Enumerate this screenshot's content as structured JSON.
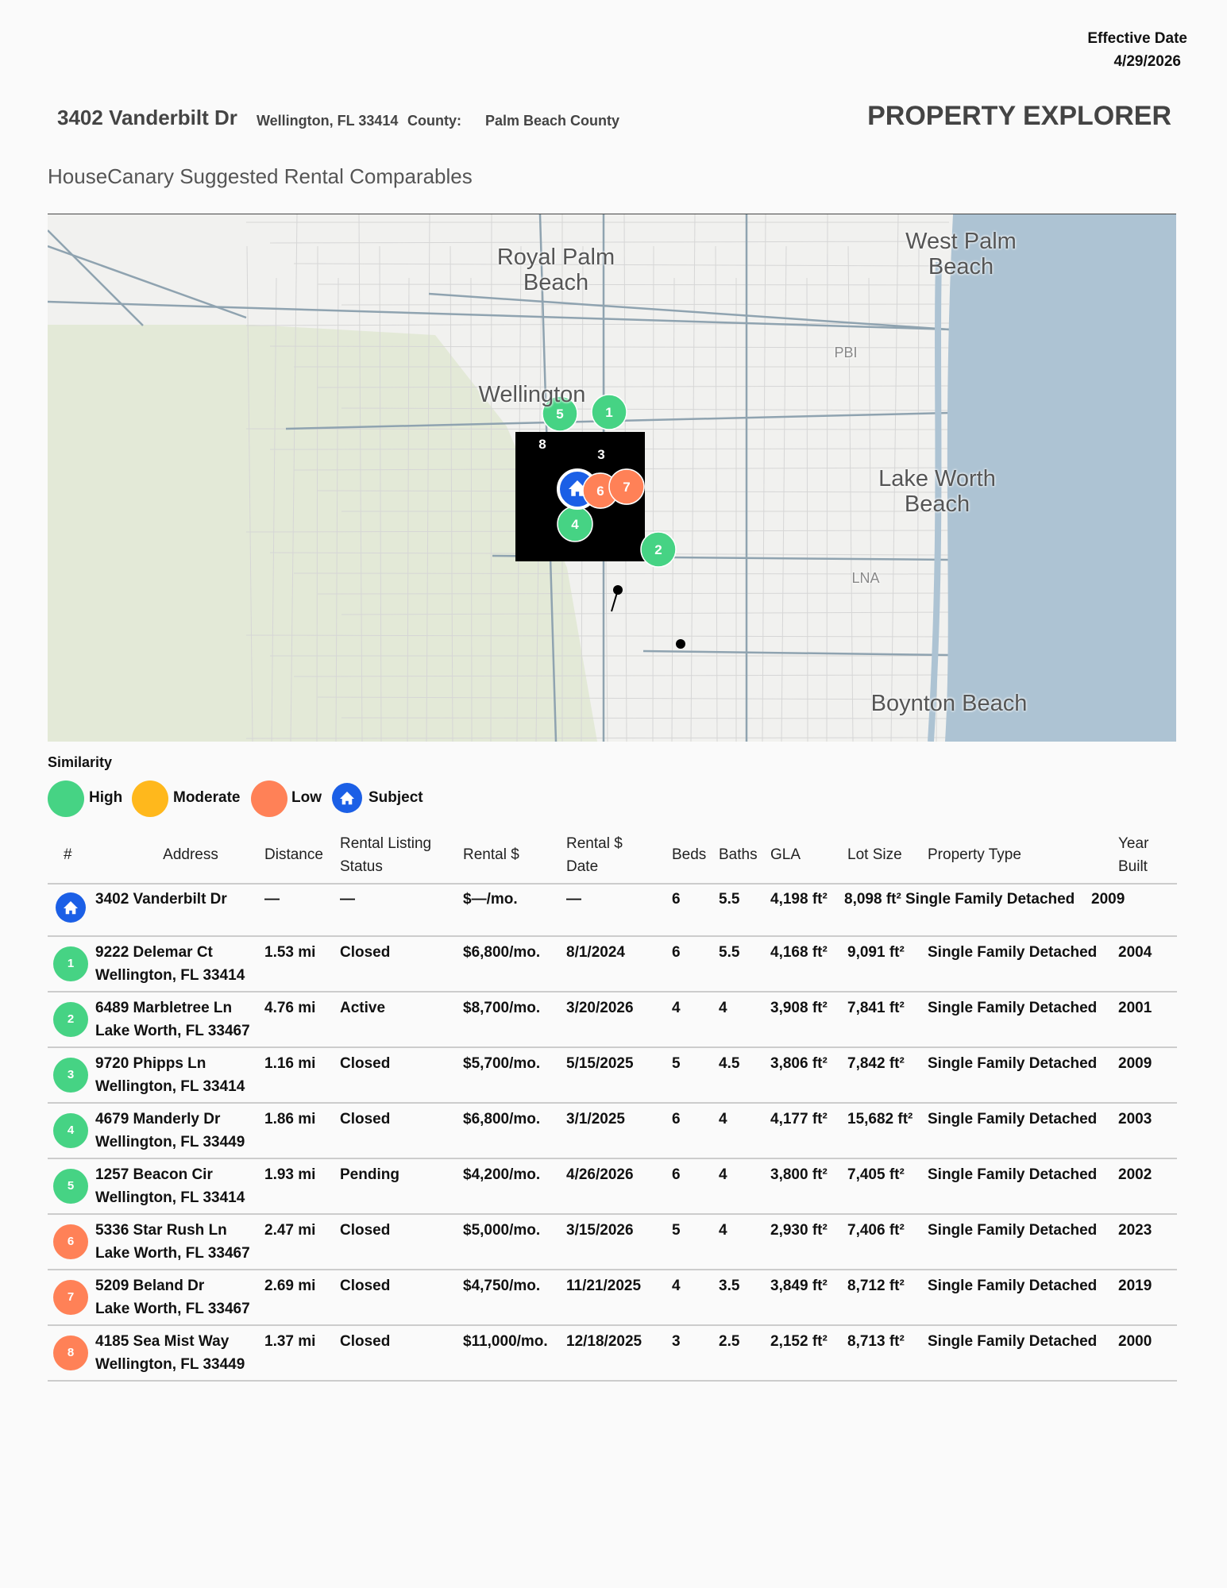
{
  "header": {
    "effective_date_label": "Effective Date",
    "effective_date": "4/29/2026",
    "address": "3402 Vanderbilt Dr",
    "city_state_zip": "Wellington, FL 33414",
    "county_label": "County:",
    "county": "Palm Beach County",
    "title": "PROPERTY EXPLORER"
  },
  "section_title": "HouseCanary Suggested Rental Comparables",
  "map": {
    "places": [
      "West Palm Beach",
      "Royal Palm Beach",
      "Wellington",
      "Lake Worth Beach",
      "Boynton Beach",
      "PBI",
      "LNA"
    ],
    "markers": [
      {
        "label": "5",
        "color": "#46d384"
      },
      {
        "label": "1",
        "color": "#46d384"
      },
      {
        "label": "8",
        "color": "#ff8157"
      },
      {
        "label": "3",
        "color": "#46d384"
      },
      {
        "label": "6",
        "color": "#ff8157"
      },
      {
        "label": "7",
        "color": "#ff8157"
      },
      {
        "label": "4",
        "color": "#46d384"
      },
      {
        "label": "2",
        "color": "#46d384"
      }
    ]
  },
  "legend": {
    "title": "Similarity",
    "items": [
      {
        "label": "High",
        "color": "#46d384"
      },
      {
        "label": "Moderate",
        "color": "#ffb81c"
      },
      {
        "label": "Low",
        "color": "#ff8157"
      },
      {
        "label": "Subject",
        "color": "#1b5fe6"
      }
    ]
  },
  "table": {
    "columns": [
      "#",
      "Address",
      "Distance",
      "Rental Listing Status",
      "Rental $",
      "Rental $ Date",
      "Beds",
      "Baths",
      "GLA",
      "Lot Size",
      "Property Type",
      "Year Built"
    ],
    "subject": [
      "3402 Vanderbilt Dr",
      "—",
      "—",
      "$—/mo.",
      "—",
      "6",
      "5.5",
      "4,198 ft²",
      "8,098 ft²",
      "Single Family Detached",
      "2009"
    ],
    "rows": [
      {
        "number": "1",
        "color": "#46d384",
        "street": "9222 Delemar Ct",
        "city": "Wellington, FL 33414",
        "cells": [
          "1.53 mi",
          "Closed",
          "$6,800/mo.",
          "8/1/2024",
          "6",
          "5.5",
          "4,168 ft²",
          "9,091 ft²",
          "Single Family Detached",
          "2004"
        ]
      },
      {
        "number": "2",
        "color": "#46d384",
        "street": "6489 Marbletree Ln",
        "city": "Lake Worth, FL 33467",
        "cells": [
          "4.76 mi",
          "Active",
          "$8,700/mo.",
          "3/20/2026",
          "4",
          "4",
          "3,908 ft²",
          "7,841 ft²",
          "Single Family Detached",
          "2001"
        ]
      },
      {
        "number": "3",
        "color": "#46d384",
        "street": "9720 Phipps Ln",
        "city": "Wellington, FL 33414",
        "cells": [
          "1.16 mi",
          "Closed",
          "$5,700/mo.",
          "5/15/2025",
          "5",
          "4.5",
          "3,806 ft²",
          "7,842 ft²",
          "Single Family Detached",
          "2009"
        ]
      },
      {
        "number": "4",
        "color": "#46d384",
        "street": "4679 Manderly Dr",
        "city": "Wellington, FL 33449",
        "cells": [
          "1.86 mi",
          "Closed",
          "$6,800/mo.",
          "3/1/2025",
          "6",
          "4",
          "4,177 ft²",
          "15,682 ft²",
          "Single Family Detached",
          "2003"
        ]
      },
      {
        "number": "5",
        "color": "#46d384",
        "street": "1257 Beacon Cir",
        "city": "Wellington, FL 33414",
        "cells": [
          "1.93 mi",
          "Pending",
          "$4,200/mo.",
          "4/26/2026",
          "6",
          "4",
          "3,800 ft²",
          "7,405 ft²",
          "Single Family Detached",
          "2002"
        ]
      },
      {
        "number": "6",
        "color": "#ff8157",
        "street": "5336 Star Rush Ln",
        "city": "Lake Worth, FL 33467",
        "cells": [
          "2.47 mi",
          "Closed",
          "$5,000/mo.",
          "3/15/2026",
          "5",
          "4",
          "2,930 ft²",
          "7,406 ft²",
          "Single Family Detached",
          "2023"
        ]
      },
      {
        "number": "7",
        "color": "#ff8157",
        "street": "5209 Beland Dr",
        "city": "Lake Worth, FL 33467",
        "cells": [
          "2.69 mi",
          "Closed",
          "$4,750/mo.",
          "11/21/2025",
          "4",
          "3.5",
          "3,849 ft²",
          "8,712 ft²",
          "Single Family Detached",
          "2019"
        ]
      },
      {
        "number": "8",
        "color": "#ff8157",
        "street": "4185 Sea Mist Way",
        "city": "Wellington, FL 33449",
        "cells": [
          "1.37 mi",
          "Closed",
          "$11,000/mo.",
          "12/18/2025",
          "3",
          "2.5",
          "2,152 ft²",
          "8,713 ft²",
          "Single Family Detached",
          "2000"
        ]
      }
    ]
  }
}
